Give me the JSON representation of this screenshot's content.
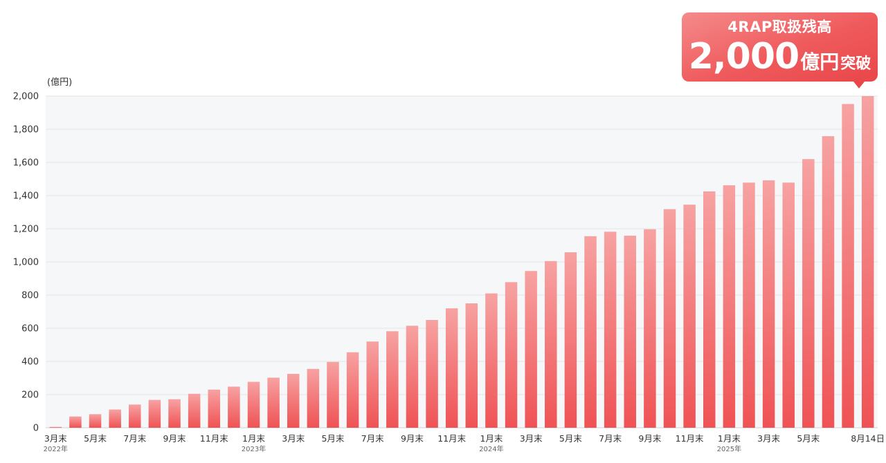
{
  "callout": {
    "title": "4RAP取扱残高",
    "number": "2,000",
    "unit": "億円",
    "suffix": "突破"
  },
  "chart_data": {
    "type": "bar",
    "ylabel": "(億円)",
    "ylim": [
      0,
      2000
    ],
    "yticks": [
      "0",
      "200",
      "400",
      "600",
      "800",
      "1,000",
      "1,200",
      "1,400",
      "1,600",
      "1,800",
      "2,000"
    ],
    "grid": true,
    "categories": [
      "2022-03",
      "2022-04",
      "2022-05",
      "2022-06",
      "2022-07",
      "2022-08",
      "2022-09",
      "2022-10",
      "2022-11",
      "2022-12",
      "2023-01",
      "2023-02",
      "2023-03",
      "2023-04",
      "2023-05",
      "2023-06",
      "2023-07",
      "2023-08",
      "2023-09",
      "2023-10",
      "2023-11",
      "2023-12",
      "2024-01",
      "2024-02",
      "2024-03",
      "2024-04",
      "2024-05",
      "2024-06",
      "2024-07",
      "2024-08",
      "2024-09",
      "2024-10",
      "2024-11",
      "2024-12",
      "2025-01",
      "2025-02",
      "2025-03",
      "2025-04",
      "2025-05",
      "2025-06",
      "2025-07",
      "2025-08-14"
    ],
    "values": [
      5,
      68,
      82,
      110,
      140,
      168,
      172,
      205,
      230,
      248,
      277,
      302,
      325,
      355,
      397,
      455,
      520,
      582,
      615,
      650,
      720,
      750,
      810,
      878,
      945,
      1005,
      1058,
      1155,
      1182,
      1158,
      1197,
      1318,
      1345,
      1425,
      1462,
      1478,
      1492,
      1478,
      1620,
      1758,
      1952,
      2000
    ],
    "xtick_labels": [
      {
        "index": 0,
        "label": "3月末"
      },
      {
        "index": 2,
        "label": "5月末"
      },
      {
        "index": 4,
        "label": "7月末"
      },
      {
        "index": 6,
        "label": "9月末"
      },
      {
        "index": 8,
        "label": "11月末"
      },
      {
        "index": 10,
        "label": "1月末"
      },
      {
        "index": 12,
        "label": "3月末"
      },
      {
        "index": 14,
        "label": "5月末"
      },
      {
        "index": 16,
        "label": "7月末"
      },
      {
        "index": 18,
        "label": "9月末"
      },
      {
        "index": 20,
        "label": "11月末"
      },
      {
        "index": 22,
        "label": "1月末"
      },
      {
        "index": 24,
        "label": "3月末"
      },
      {
        "index": 26,
        "label": "5月末"
      },
      {
        "index": 28,
        "label": "7月末"
      },
      {
        "index": 30,
        "label": "9月末"
      },
      {
        "index": 32,
        "label": "11月末"
      },
      {
        "index": 34,
        "label": "1月末"
      },
      {
        "index": 36,
        "label": "3月末"
      },
      {
        "index": 38,
        "label": "5月末"
      },
      {
        "index": 41,
        "label": "8月14日"
      }
    ],
    "year_labels": [
      {
        "index": 0,
        "label": "2022年"
      },
      {
        "index": 10,
        "label": "2023年"
      },
      {
        "index": 22,
        "label": "2024年"
      },
      {
        "index": 34,
        "label": "2025年"
      }
    ],
    "colors": {
      "bar_top": "#f7a2a2",
      "bar_bottom": "#ef5254",
      "plot_bg": "#f6f7f9",
      "grid": "#e3e4e8"
    }
  }
}
